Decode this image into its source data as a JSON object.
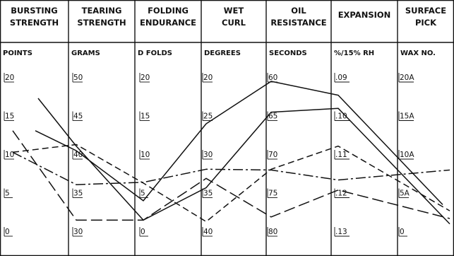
{
  "chart_data": {
    "type": "line",
    "title": "",
    "columns": [
      {
        "header": [
          "BURSTING",
          "STRENGTH"
        ],
        "unit": "POINTS",
        "ticks": [
          "20",
          "15",
          "10",
          "5",
          "0"
        ]
      },
      {
        "header": [
          "TEARING",
          "STRENGTH"
        ],
        "unit": "GRAMS",
        "ticks": [
          "50",
          "45",
          "40",
          "35",
          "30"
        ]
      },
      {
        "header": [
          "FOLDING",
          "ENDURANCE"
        ],
        "unit": "D FOLDS",
        "ticks": [
          "20",
          "15",
          "10",
          "5",
          "0"
        ]
      },
      {
        "header": [
          "WET",
          "CURL"
        ],
        "unit": "DEGREES",
        "ticks": [
          "20",
          "25",
          "30",
          "35",
          "40"
        ]
      },
      {
        "header": [
          "OIL",
          "RESISTANCE"
        ],
        "unit": "SECONDS",
        "ticks": [
          "60",
          "65",
          "70",
          "75",
          "80"
        ]
      },
      {
        "header": [
          "EXPANSION"
        ],
        "unit": "%/15% RH",
        "ticks": [
          ".09",
          ".10",
          ".11",
          ".12",
          ".13"
        ]
      },
      {
        "header": [
          "SURFACE",
          "PICK"
        ],
        "unit": "WAX NO.",
        "ticks": [
          "20A",
          "15A",
          "10A",
          "5A",
          "0"
        ]
      }
    ],
    "y_scale_note": "each axis maps its first tick at top to last tick at bottom; values below are normalized scale positions (20 = top tick, 0 = bottom tick)",
    "grid": false,
    "series": [
      {
        "style": "solid",
        "values": [
          13.6,
          11.0,
          4.5,
          14.5,
          20.0,
          18.2,
          4.0
        ]
      },
      {
        "style": "solid",
        "values": [
          17.8,
          11.6,
          2.0,
          6.2,
          16.0,
          16.5,
          1.5
        ]
      },
      {
        "style": "dashed",
        "values": [
          10.8,
          11.8,
          6.8,
          1.8,
          8.6,
          11.6,
          3.2
        ]
      },
      {
        "style": "dashdot",
        "values": [
          10.8,
          6.6,
          6.9,
          8.6,
          8.5,
          7.2,
          8.5
        ]
      },
      {
        "style": "longdash",
        "values": [
          13.6,
          2.0,
          2.0,
          7.4,
          2.4,
          5.9,
          2.2
        ]
      }
    ]
  }
}
